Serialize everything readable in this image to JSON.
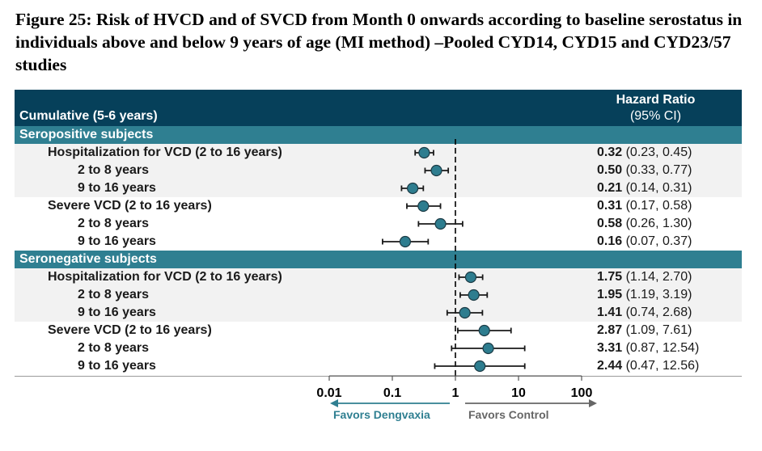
{
  "title": "Figure 25: Risk of HVCD and of SVCD from Month 0 onwards according to baseline serostatus in individuals above and below 9 years of age (MI method) –Pooled CYD14, CYD15 and CYD23/57 studies",
  "header": {
    "left": "Cumulative (5-6 years)",
    "right_line1": "Hazard Ratio",
    "right_line2": "(95% CI)"
  },
  "colors": {
    "header_bg": "#06405a",
    "band_bg": "#2f7f91",
    "row_gray": "#f2f2f2",
    "marker_fill": "#2e7d8f",
    "favor_dengvaxia": "#2f7f91",
    "favor_control": "#666666"
  },
  "chart_data": {
    "type": "forest",
    "title": "Figure 25: Risk of HVCD and of SVCD from Month 0 onwards according to baseline serostatus in individuals above and below 9 years of age (MI method) –Pooled CYD14, CYD15 and CYD23/57 studies",
    "xscale": "log",
    "xlim": [
      0.01,
      100
    ],
    "reference_line": 1,
    "xticks": [
      "0.01",
      "0.1",
      "1",
      "10",
      "100"
    ],
    "xtick_values": [
      0.01,
      0.1,
      1,
      10,
      100
    ],
    "arrow_left_label": "Favors Dengvaxia",
    "arrow_right_label": "Favors Control",
    "sections": [
      {
        "name": "Seropositive subjects",
        "rows": [
          {
            "label": "Hospitalization for VCD (2 to 16 years)",
            "level": 1,
            "shade": true,
            "hr": 0.32,
            "lo": 0.23,
            "hi": 0.45,
            "hr_text": "0.32",
            "ci_text": "(0.23, 0.45)"
          },
          {
            "label": "2 to 8 years",
            "level": 2,
            "shade": true,
            "hr": 0.5,
            "lo": 0.33,
            "hi": 0.77,
            "hr_text": "0.50",
            "ci_text": "(0.33, 0.77)"
          },
          {
            "label": "9 to 16 years",
            "level": 2,
            "shade": true,
            "hr": 0.21,
            "lo": 0.14,
            "hi": 0.31,
            "hr_text": "0.21",
            "ci_text": "(0.14, 0.31)"
          },
          {
            "label": "Severe VCD (2 to 16 years)",
            "level": 1,
            "shade": false,
            "hr": 0.31,
            "lo": 0.17,
            "hi": 0.58,
            "hr_text": "0.31",
            "ci_text": "(0.17, 0.58)"
          },
          {
            "label": "2 to 8 years",
            "level": 2,
            "shade": false,
            "hr": 0.58,
            "lo": 0.26,
            "hi": 1.3,
            "hr_text": "0.58",
            "ci_text": "(0.26, 1.30)"
          },
          {
            "label": "9 to 16 years",
            "level": 2,
            "shade": false,
            "hr": 0.16,
            "lo": 0.07,
            "hi": 0.37,
            "hr_text": "0.16",
            "ci_text": "(0.07, 0.37)"
          }
        ]
      },
      {
        "name": "Seronegative subjects",
        "rows": [
          {
            "label": "Hospitalization for VCD (2 to 16 years)",
            "level": 1,
            "shade": true,
            "hr": 1.75,
            "lo": 1.14,
            "hi": 2.7,
            "hr_text": "1.75",
            "ci_text": "(1.14, 2.70)"
          },
          {
            "label": "2 to 8 years",
            "level": 2,
            "shade": true,
            "hr": 1.95,
            "lo": 1.19,
            "hi": 3.19,
            "hr_text": "1.95",
            "ci_text": "(1.19, 3.19)"
          },
          {
            "label": "9 to 16 years",
            "level": 2,
            "shade": true,
            "hr": 1.41,
            "lo": 0.74,
            "hi": 2.68,
            "hr_text": "1.41",
            "ci_text": "(0.74, 2.68)"
          },
          {
            "label": "Severe VCD (2 to 16 years)",
            "level": 1,
            "shade": false,
            "hr": 2.87,
            "lo": 1.09,
            "hi": 7.61,
            "hr_text": "2.87",
            "ci_text": "(1.09, 7.61)"
          },
          {
            "label": "2 to 8 years",
            "level": 2,
            "shade": false,
            "hr": 3.31,
            "lo": 0.87,
            "hi": 12.54,
            "hr_text": "3.31",
            "ci_text": "(0.87, 12.54)"
          },
          {
            "label": "9 to 16 years",
            "level": 2,
            "shade": false,
            "hr": 2.44,
            "lo": 0.47,
            "hi": 12.56,
            "hr_text": "2.44",
            "ci_text": "(0.47, 12.56)"
          }
        ]
      }
    ]
  }
}
